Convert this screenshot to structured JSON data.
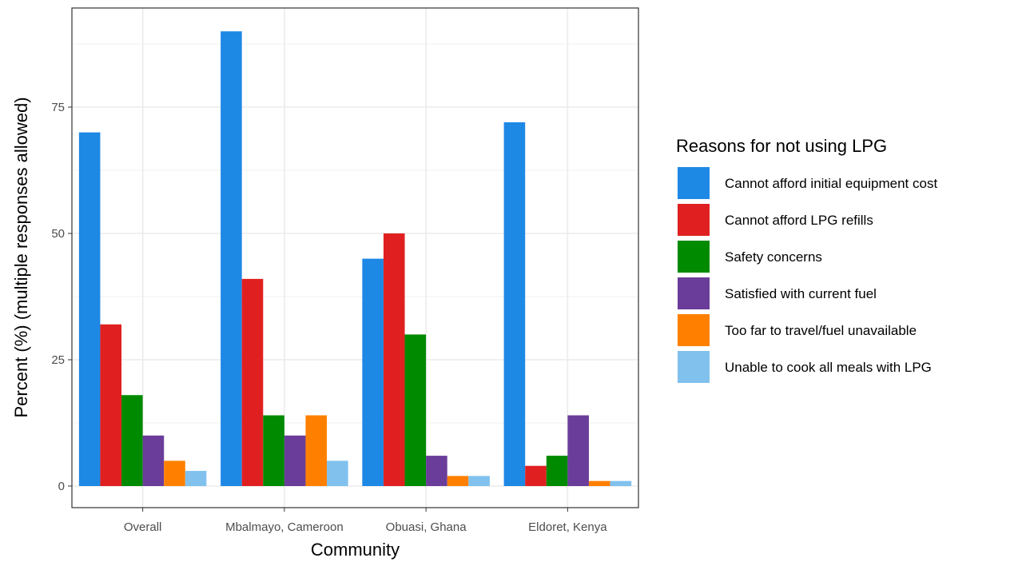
{
  "chart_data": {
    "type": "bar",
    "xlabel": "Community",
    "ylabel": "Percent (%) (multiple responses allowed)",
    "ylim": [
      -2,
      95
    ],
    "yticks": [
      0,
      25,
      50,
      75
    ],
    "ytick_labels": [
      "0",
      "25",
      "50",
      "75"
    ],
    "grid": true,
    "legend_title": "Reasons for not using LPG",
    "legend_position": "right",
    "categories": [
      "Overall",
      "Mbalmayo, Cameroon",
      "Obuasi, Ghana",
      "Eldoret, Kenya"
    ],
    "series": [
      {
        "name": "Cannot afford initial equipment cost",
        "color": "#1e88e5",
        "values": [
          70,
          90,
          45,
          72
        ]
      },
      {
        "name": "Cannot afford LPG refills",
        "color": "#e02020",
        "values": [
          32,
          41,
          50,
          4
        ]
      },
      {
        "name": "Safety concerns",
        "color": "#008a00",
        "values": [
          18,
          14,
          30,
          6
        ]
      },
      {
        "name": "Satisfied with current fuel",
        "color": "#6a3d9a",
        "values": [
          10,
          10,
          6,
          14
        ]
      },
      {
        "name": "Too far to travel/fuel unavailable",
        "color": "#ff8000",
        "values": [
          5,
          14,
          2,
          1
        ]
      },
      {
        "name": "Unable to cook all meals with LPG",
        "color": "#80c1ee",
        "values": [
          3,
          5,
          2,
          1
        ]
      }
    ]
  }
}
